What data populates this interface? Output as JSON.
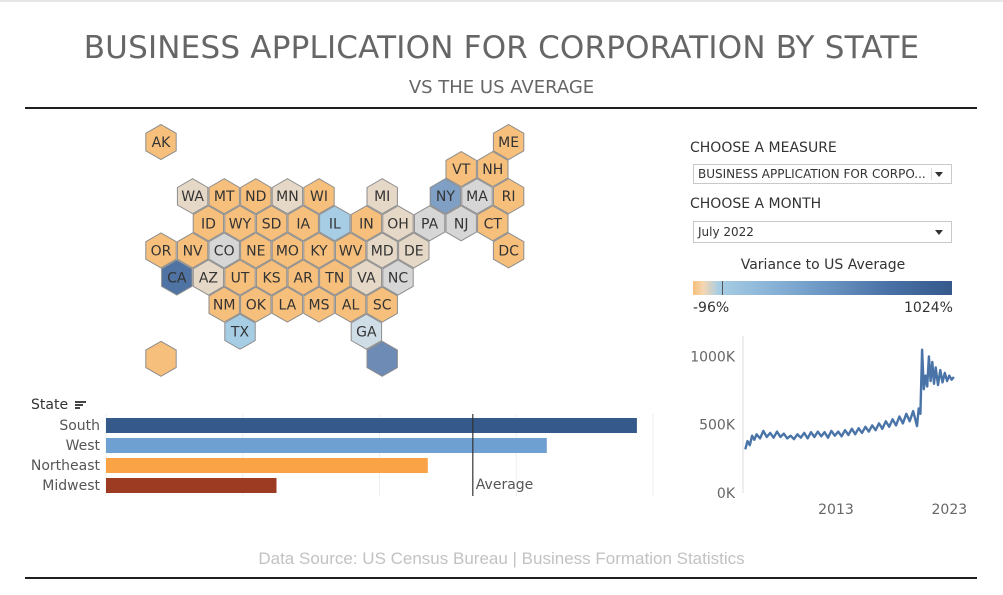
{
  "header": {
    "title": "BUSINESS APPLICATION FOR CORPORATION BY STATE",
    "subtitle": "VS THE US AVERAGE"
  },
  "controls": {
    "measure_label": "CHOOSE A MEASURE",
    "measure_value": "BUSINESS APPLICATION FOR CORPO...",
    "month_label": "CHOOSE A MONTH",
    "month_value": "July 2022"
  },
  "legend": {
    "title": "Variance to US Average",
    "min": "-96%",
    "max": "1024%",
    "colors": [
      "#f6bf7c",
      "#f5d6b0",
      "#a7cde5",
      "#7ba6cf",
      "#4a72a6",
      "#35598b"
    ]
  },
  "footer": "Data Source: US Census Bureau | Business Formation Statistics",
  "chart_data": [
    {
      "type": "heatmap",
      "name": "hex-tile-map",
      "color_scale": {
        "neutral": "#f6bf7c",
        "mid": "#e6dacb",
        "low_blue": "#a7cde5",
        "high": "#35598b"
      },
      "tiles": [
        {
          "state": "AK",
          "row": 0,
          "col": 0,
          "color": "#f6bf7c"
        },
        {
          "state": "ME",
          "row": 0,
          "col": 11,
          "color": "#f6bf7c"
        },
        {
          "state": "VT",
          "row": 1,
          "col": 9,
          "color": "#f6bf7c"
        },
        {
          "state": "NH",
          "row": 1,
          "col": 10,
          "color": "#f6bf7c"
        },
        {
          "state": "WA",
          "row": 2,
          "col": 1,
          "color": "#e6d8c6"
        },
        {
          "state": "MT",
          "row": 2,
          "col": 2,
          "color": "#f6bf7c"
        },
        {
          "state": "ND",
          "row": 2,
          "col": 3,
          "color": "#f6bf7c"
        },
        {
          "state": "MN",
          "row": 2,
          "col": 4,
          "color": "#e6d8c6"
        },
        {
          "state": "WI",
          "row": 2,
          "col": 5,
          "color": "#f6bf7c"
        },
        {
          "state": "MI",
          "row": 2,
          "col": 7,
          "color": "#e6d8c6"
        },
        {
          "state": "NY",
          "row": 2,
          "col": 9,
          "color": "#7f9fc4"
        },
        {
          "state": "MA",
          "row": 2,
          "col": 10,
          "color": "#d6d6d6"
        },
        {
          "state": "RI",
          "row": 2,
          "col": 11,
          "color": "#f6bf7c"
        },
        {
          "state": "ID",
          "row": 3,
          "col": 1,
          "color": "#f6bf7c"
        },
        {
          "state": "WY",
          "row": 3,
          "col": 2,
          "color": "#f6bf7c"
        },
        {
          "state": "SD",
          "row": 3,
          "col": 3,
          "color": "#f6bf7c"
        },
        {
          "state": "IA",
          "row": 3,
          "col": 4,
          "color": "#f6bf7c"
        },
        {
          "state": "IL",
          "row": 3,
          "col": 5,
          "color": "#a7cde5"
        },
        {
          "state": "IN",
          "row": 3,
          "col": 6,
          "color": "#f6bf7c"
        },
        {
          "state": "OH",
          "row": 3,
          "col": 7,
          "color": "#e6d8c6"
        },
        {
          "state": "PA",
          "row": 3,
          "col": 8,
          "color": "#d6d6d6"
        },
        {
          "state": "NJ",
          "row": 3,
          "col": 9,
          "color": "#d6d6d6"
        },
        {
          "state": "CT",
          "row": 3,
          "col": 10,
          "color": "#f6bf7c"
        },
        {
          "state": "OR",
          "row": 4,
          "col": 0,
          "color": "#f6bf7c"
        },
        {
          "state": "NV",
          "row": 4,
          "col": 1,
          "color": "#f6bf7c"
        },
        {
          "state": "CO",
          "row": 4,
          "col": 2,
          "color": "#d6d6d6"
        },
        {
          "state": "NE",
          "row": 4,
          "col": 3,
          "color": "#f6bf7c"
        },
        {
          "state": "MO",
          "row": 4,
          "col": 4,
          "color": "#f6bf7c"
        },
        {
          "state": "KY",
          "row": 4,
          "col": 5,
          "color": "#f6bf7c"
        },
        {
          "state": "WV",
          "row": 4,
          "col": 6,
          "color": "#f6bf7c"
        },
        {
          "state": "MD",
          "row": 4,
          "col": 7,
          "color": "#e6d8c6"
        },
        {
          "state": "DE",
          "row": 4,
          "col": 8,
          "color": "#e6d8c6"
        },
        {
          "state": "DC",
          "row": 4,
          "col": 11,
          "color": "#f6bf7c"
        },
        {
          "state": "CA",
          "row": 5,
          "col": 0,
          "color": "#4f73a3"
        },
        {
          "state": "AZ",
          "row": 5,
          "col": 1,
          "color": "#e6d8c6"
        },
        {
          "state": "UT",
          "row": 5,
          "col": 2,
          "color": "#f6bf7c"
        },
        {
          "state": "KS",
          "row": 5,
          "col": 3,
          "color": "#f6bf7c"
        },
        {
          "state": "AR",
          "row": 5,
          "col": 4,
          "color": "#f6bf7c"
        },
        {
          "state": "TN",
          "row": 5,
          "col": 5,
          "color": "#f6bf7c"
        },
        {
          "state": "VA",
          "row": 5,
          "col": 6,
          "color": "#e6d8c6"
        },
        {
          "state": "NC",
          "row": 5,
          "col": 7,
          "color": "#d6d6d6"
        },
        {
          "state": "NM",
          "row": 6,
          "col": 2,
          "color": "#f6bf7c"
        },
        {
          "state": "OK",
          "row": 6,
          "col": 3,
          "color": "#f6bf7c"
        },
        {
          "state": "LA",
          "row": 6,
          "col": 4,
          "color": "#f6bf7c"
        },
        {
          "state": "MS",
          "row": 6,
          "col": 5,
          "color": "#f6bf7c"
        },
        {
          "state": "AL",
          "row": 6,
          "col": 6,
          "color": "#f6bf7c"
        },
        {
          "state": "SC",
          "row": 6,
          "col": 7,
          "color": "#f6bf7c"
        },
        {
          "state": "TX",
          "row": 7,
          "col": 2,
          "color": "#a7cde5"
        },
        {
          "state": "GA",
          "row": 7,
          "col": 6,
          "color": "#cfdde6"
        },
        {
          "state": "",
          "row": 8,
          "col": 0,
          "color": "#f6bf7c"
        },
        {
          "state": "",
          "row": 8,
          "col": 7,
          "color": "#6d8bb4"
        }
      ]
    },
    {
      "type": "bar",
      "name": "region-bars",
      "xlabel": "",
      "ylabel": "State",
      "categories": [
        "South",
        "West",
        "Northeast",
        "Midwest"
      ],
      "values": [
        16.5,
        13.7,
        10.0,
        5.3
      ],
      "colors": [
        "#35598b",
        "#6fa0d2",
        "#f9a346",
        "#9c3a22"
      ],
      "reference_line": {
        "label": "Average",
        "value": 11.4
      },
      "xlim": [
        0,
        17
      ]
    },
    {
      "type": "line",
      "name": "national-trend",
      "xlabel": "",
      "ylabel": "",
      "xlim": [
        2004.8,
        2023.5
      ],
      "ylim": [
        0,
        1150
      ],
      "yticks": [
        "0K",
        "500K",
        "1000K"
      ],
      "ytick_values": [
        0,
        500,
        1000
      ],
      "xticks": [
        "2013",
        "2023"
      ],
      "xtick_values": [
        2013,
        2023
      ],
      "series": [
        {
          "values": [
            [
              2005.0,
              320
            ],
            [
              2005.2,
              380
            ],
            [
              2005.4,
              350
            ],
            [
              2005.6,
              420
            ],
            [
              2005.8,
              390
            ],
            [
              2006.0,
              430
            ],
            [
              2006.3,
              400
            ],
            [
              2006.6,
              455
            ],
            [
              2006.9,
              410
            ],
            [
              2007.2,
              440
            ],
            [
              2007.5,
              405
            ],
            [
              2007.8,
              450
            ],
            [
              2008.1,
              410
            ],
            [
              2008.4,
              435
            ],
            [
              2008.7,
              400
            ],
            [
              2009.0,
              420
            ],
            [
              2009.3,
              395
            ],
            [
              2009.6,
              430
            ],
            [
              2009.9,
              405
            ],
            [
              2010.2,
              440
            ],
            [
              2010.5,
              400
            ],
            [
              2010.8,
              445
            ],
            [
              2011.1,
              410
            ],
            [
              2011.4,
              450
            ],
            [
              2011.7,
              415
            ],
            [
              2012.0,
              445
            ],
            [
              2012.3,
              405
            ],
            [
              2012.6,
              455
            ],
            [
              2012.9,
              420
            ],
            [
              2013.2,
              450
            ],
            [
              2013.5,
              415
            ],
            [
              2013.8,
              460
            ],
            [
              2014.1,
              425
            ],
            [
              2014.4,
              470
            ],
            [
              2014.7,
              430
            ],
            [
              2015.0,
              475
            ],
            [
              2015.3,
              440
            ],
            [
              2015.6,
              485
            ],
            [
              2015.9,
              450
            ],
            [
              2016.2,
              495
            ],
            [
              2016.5,
              460
            ],
            [
              2016.8,
              510
            ],
            [
              2017.1,
              470
            ],
            [
              2017.4,
              525
            ],
            [
              2017.7,
              485
            ],
            [
              2018.0,
              540
            ],
            [
              2018.3,
              495
            ],
            [
              2018.6,
              560
            ],
            [
              2018.9,
              510
            ],
            [
              2019.2,
              580
            ],
            [
              2019.5,
              525
            ],
            [
              2019.8,
              600
            ],
            [
              2020.0,
              540
            ],
            [
              2020.15,
              490
            ],
            [
              2020.3,
              620
            ],
            [
              2020.45,
              580
            ],
            [
              2020.6,
              1050
            ],
            [
              2020.75,
              760
            ],
            [
              2020.9,
              860
            ],
            [
              2021.05,
              780
            ],
            [
              2021.2,
              1000
            ],
            [
              2021.35,
              820
            ],
            [
              2021.5,
              960
            ],
            [
              2021.65,
              800
            ],
            [
              2021.8,
              920
            ],
            [
              2022.0,
              790
            ],
            [
              2022.2,
              900
            ],
            [
              2022.4,
              810
            ],
            [
              2022.6,
              880
            ],
            [
              2022.8,
              820
            ],
            [
              2023.0,
              860
            ],
            [
              2023.2,
              830
            ],
            [
              2023.4,
              850
            ]
          ],
          "color": "#4a74a8"
        }
      ]
    }
  ]
}
